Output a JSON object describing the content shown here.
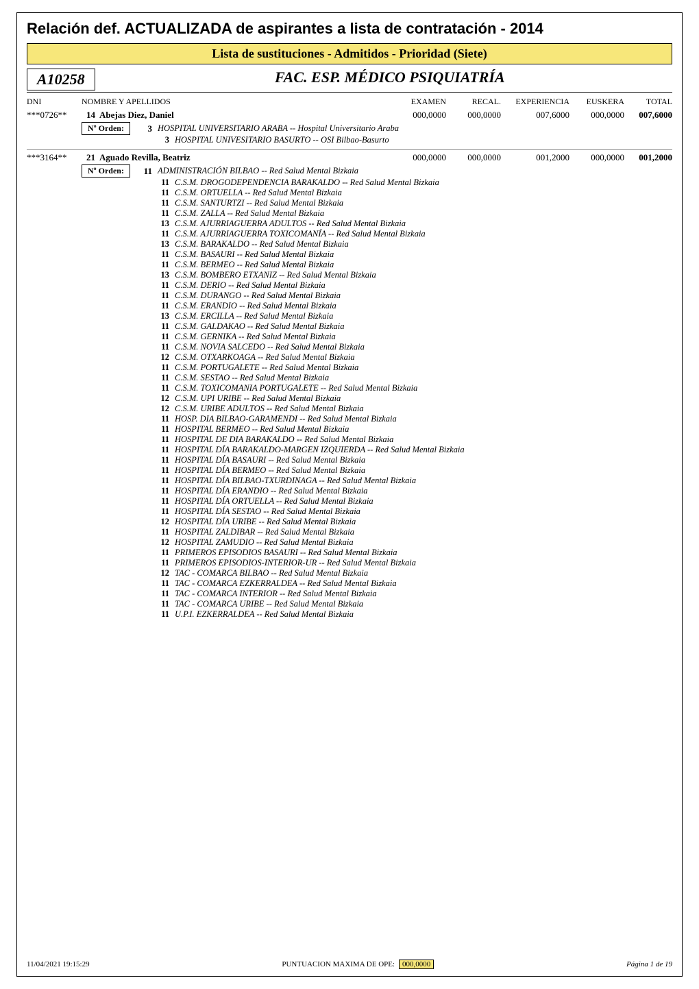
{
  "header": {
    "main_title": "Relación def.  ACTUALIZADA de aspirantes a lista de contratación - 2014",
    "band_title": "Lista de sustituciones - Admitidos - Prioridad (Siete)",
    "code": "A10258",
    "category": "FAC. ESP. MÉDICO PSIQUIATRÍA"
  },
  "columns": {
    "dni": "DNI",
    "name": "NOMBRE Y APELLIDOS",
    "exam": "EXAMEN",
    "recal": "RECAL.",
    "exp": "EXPERIENCIA",
    "eusk": "EUSKERA",
    "total": "TOTAL"
  },
  "orden_label": "Nº Orden:",
  "people": [
    {
      "dni": "***0726**",
      "seq": "14",
      "name": "Abejas Diez, Daniel",
      "exam": "000,0000",
      "recal": "000,0000",
      "exp": "007,6000",
      "eusk": "000,0000",
      "total": "007,6000",
      "destinations": [
        {
          "rank": "3",
          "text": "HOSPITAL UNIVERSITARIO ARABA -- Hospital Universitario Araba"
        },
        {
          "rank": "3",
          "text": "HOSPITAL UNIVESITARIO BASURTO -- OSI Bilbao-Basurto"
        }
      ]
    },
    {
      "dni": "***3164**",
      "seq": "21",
      "name": "Aguado Revilla, Beatriz",
      "exam": "000,0000",
      "recal": "000,0000",
      "exp": "001,2000",
      "eusk": "000,0000",
      "total": "001,2000",
      "destinations": [
        {
          "rank": "11",
          "text": "ADMINISTRACIÓN BILBAO  -- Red Salud Mental Bizkaia"
        },
        {
          "rank": "11",
          "text": "C.S.M.  DROGODEPENDENCIA BARAKALDO -- Red Salud Mental Bizkaia"
        },
        {
          "rank": "11",
          "text": "C.S.M.  ORTUELLA -- Red Salud Mental Bizkaia"
        },
        {
          "rank": "11",
          "text": "C.S.M.  SANTURTZI -- Red Salud Mental Bizkaia"
        },
        {
          "rank": "11",
          "text": "C.S.M.  ZALLA -- Red Salud Mental Bizkaia"
        },
        {
          "rank": "13",
          "text": "C.S.M. AJURRIAGUERRA ADULTOS -- Red Salud Mental Bizkaia"
        },
        {
          "rank": "11",
          "text": "C.S.M. AJURRIAGUERRA TOXICOMANÍA -- Red Salud Mental Bizkaia"
        },
        {
          "rank": "13",
          "text": "C.S.M. BARAKALDO -- Red Salud Mental Bizkaia"
        },
        {
          "rank": "11",
          "text": "C.S.M. BASAURI -- Red Salud Mental Bizkaia"
        },
        {
          "rank": "11",
          "text": "C.S.M. BERMEO -- Red Salud Mental Bizkaia"
        },
        {
          "rank": "13",
          "text": "C.S.M. BOMBERO ETXANIZ -- Red Salud Mental Bizkaia"
        },
        {
          "rank": "11",
          "text": "C.S.M. DERIO -- Red Salud Mental Bizkaia"
        },
        {
          "rank": "11",
          "text": "C.S.M. DURANGO -- Red Salud Mental Bizkaia"
        },
        {
          "rank": "11",
          "text": "C.S.M. ERANDIO -- Red Salud Mental Bizkaia"
        },
        {
          "rank": "13",
          "text": "C.S.M. ERCILLA -- Red Salud Mental Bizkaia"
        },
        {
          "rank": "11",
          "text": "C.S.M. GALDAKAO -- Red Salud Mental Bizkaia"
        },
        {
          "rank": "11",
          "text": "C.S.M. GERNIKA -- Red Salud Mental Bizkaia"
        },
        {
          "rank": "11",
          "text": "C.S.M. NOVIA SALCEDO -- Red Salud Mental Bizkaia"
        },
        {
          "rank": "12",
          "text": "C.S.M. OTXARKOAGA -- Red Salud Mental Bizkaia"
        },
        {
          "rank": "11",
          "text": "C.S.M. PORTUGALETE -- Red Salud Mental Bizkaia"
        },
        {
          "rank": "11",
          "text": "C.S.M. SESTAO -- Red Salud Mental Bizkaia"
        },
        {
          "rank": "11",
          "text": "C.S.M. TOXICOMANIA PORTUGALETE -- Red Salud Mental Bizkaia"
        },
        {
          "rank": "12",
          "text": "C.S.M. UPI URIBE -- Red Salud Mental Bizkaia"
        },
        {
          "rank": "12",
          "text": "C.S.M. URIBE ADULTOS -- Red Salud Mental Bizkaia"
        },
        {
          "rank": "11",
          "text": "HOSP. DIA BILBAO-GARAMENDI -- Red Salud Mental Bizkaia"
        },
        {
          "rank": "11",
          "text": "HOSPITAL BERMEO -- Red Salud Mental Bizkaia"
        },
        {
          "rank": "11",
          "text": "HOSPITAL DE DIA BARAKALDO -- Red Salud Mental Bizkaia"
        },
        {
          "rank": "11",
          "text": "HOSPITAL DÍA BARAKALDO-MARGEN IZQUIERDA -- Red Salud Mental Bizkaia"
        },
        {
          "rank": "11",
          "text": "HOSPITAL DÍA BASAURI -- Red Salud Mental Bizkaia"
        },
        {
          "rank": "11",
          "text": "HOSPITAL DÍA BERMEO -- Red Salud Mental Bizkaia"
        },
        {
          "rank": "11",
          "text": "HOSPITAL DÍA BILBAO-TXURDINAGA -- Red Salud Mental Bizkaia"
        },
        {
          "rank": "11",
          "text": "HOSPITAL DÍA ERANDIO -- Red Salud Mental Bizkaia"
        },
        {
          "rank": "11",
          "text": "HOSPITAL DÍA ORTUELLA -- Red Salud Mental Bizkaia"
        },
        {
          "rank": "11",
          "text": "HOSPITAL DÍA SESTAO -- Red Salud Mental Bizkaia"
        },
        {
          "rank": "12",
          "text": "HOSPITAL DÍA URIBE -- Red Salud Mental Bizkaia"
        },
        {
          "rank": "11",
          "text": "HOSPITAL ZALDIBAR  -- Red Salud Mental Bizkaia"
        },
        {
          "rank": "12",
          "text": "HOSPITAL ZAMUDIO  -- Red Salud Mental Bizkaia"
        },
        {
          "rank": "11",
          "text": "PRIMEROS EPISODIOS BASAURI -- Red Salud Mental Bizkaia"
        },
        {
          "rank": "11",
          "text": "PRIMEROS EPISODIOS-INTERIOR-UR -- Red Salud Mental Bizkaia"
        },
        {
          "rank": "12",
          "text": "TAC - COMARCA BILBAO -- Red Salud Mental Bizkaia"
        },
        {
          "rank": "11",
          "text": "TAC - COMARCA EZKERRALDEA -- Red Salud Mental Bizkaia"
        },
        {
          "rank": "11",
          "text": "TAC - COMARCA INTERIOR -- Red Salud Mental Bizkaia"
        },
        {
          "rank": "11",
          "text": "TAC - COMARCA URIBE -- Red Salud Mental Bizkaia"
        },
        {
          "rank": "11",
          "text": "U.P.I.  EZKERRALDEA -- Red Salud Mental Bizkaia"
        }
      ]
    }
  ],
  "footer": {
    "timestamp": "11/04/2021 19:15:29",
    "mid_label": "PUNTUACION MAXIMA DE OPE:",
    "mid_value": "000,0000",
    "page": "Página 1 de 19"
  }
}
